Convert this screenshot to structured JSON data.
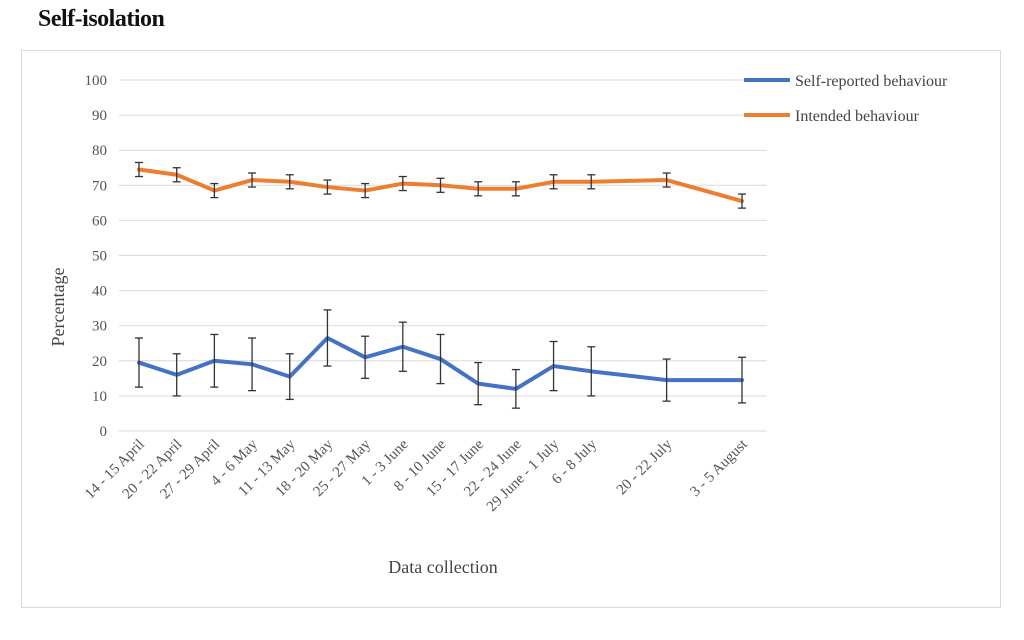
{
  "page": {
    "title": "Self-isolation"
  },
  "colors": {
    "self_reported": "#4472C4",
    "intended": "#ED7D31",
    "grid": "#d9d9d9",
    "error_bar": "#333333"
  },
  "chart_data": {
    "type": "line",
    "title": "Self-isolation",
    "xlabel": "Data collection",
    "ylabel": "Percentage",
    "ylim": [
      0,
      100
    ],
    "yticks": [
      0,
      10,
      20,
      30,
      40,
      50,
      60,
      70,
      80,
      90,
      100
    ],
    "grid": true,
    "legend_position": "top-right",
    "categories": [
      "14 - 15 April",
      "20 - 22 April",
      "27 - 29 April",
      "4 - 6 May",
      "11 - 13 May",
      "18 - 20 May",
      "25 - 27 May",
      "1 - 3 June",
      "8 - 10 June",
      "15 - 17 June",
      "22 - 24 June",
      "29 June - 1 July",
      "6 - 8 July",
      "20 - 22 July",
      "3 - 5 August"
    ],
    "x": [
      0,
      1,
      2,
      3,
      4,
      5,
      6,
      7,
      8,
      9,
      10,
      11,
      12,
      14,
      16
    ],
    "series": [
      {
        "name": "Self-reported behaviour",
        "color": "#4472C4",
        "values": [
          19.5,
          16,
          20,
          19,
          15.5,
          26.5,
          21,
          24,
          20.5,
          13.5,
          12,
          18.5,
          17,
          14.5,
          14.5
        ],
        "errors": [
          7,
          6,
          7.5,
          7.5,
          6.5,
          8,
          6,
          7,
          7,
          6,
          5.5,
          7,
          7,
          6,
          6.5
        ]
      },
      {
        "name": "Intended behaviour",
        "color": "#ED7D31",
        "values": [
          74.5,
          73,
          68.5,
          71.5,
          71,
          69.5,
          68.5,
          70.5,
          70,
          69,
          69,
          71,
          71,
          71.5,
          65.5
        ],
        "errors": [
          2,
          2,
          2,
          2,
          2,
          2,
          2,
          2,
          2,
          2,
          2,
          2,
          2,
          2,
          2
        ]
      }
    ]
  }
}
